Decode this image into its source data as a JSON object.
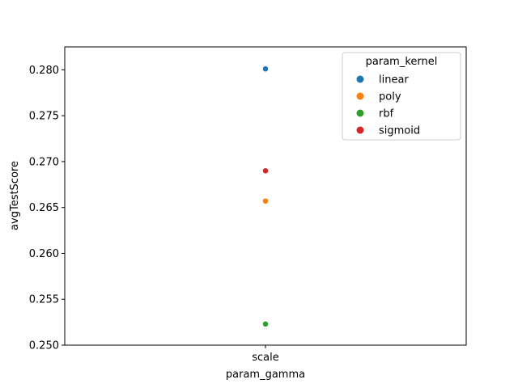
{
  "chart_data": {
    "type": "scatter",
    "title": "",
    "xlabel": "param_gamma",
    "ylabel": "avgTestScore",
    "categories": [
      "scale"
    ],
    "ylim": [
      0.25,
      0.2825
    ],
    "yticks": [
      "0.250",
      "0.255",
      "0.260",
      "0.265",
      "0.270",
      "0.275",
      "0.280"
    ],
    "legend": {
      "title": "param_kernel",
      "placement": "top-right"
    },
    "grid": false,
    "series": [
      {
        "name": "linear",
        "color": "#1f77b4",
        "x": "scale",
        "y": 0.2801
      },
      {
        "name": "poly",
        "color": "#ff7f0e",
        "x": "scale",
        "y": 0.2657
      },
      {
        "name": "rbf",
        "color": "#2ca02c",
        "x": "scale",
        "y": 0.2523
      },
      {
        "name": "sigmoid",
        "color": "#d62728",
        "x": "scale",
        "y": 0.269
      }
    ]
  }
}
